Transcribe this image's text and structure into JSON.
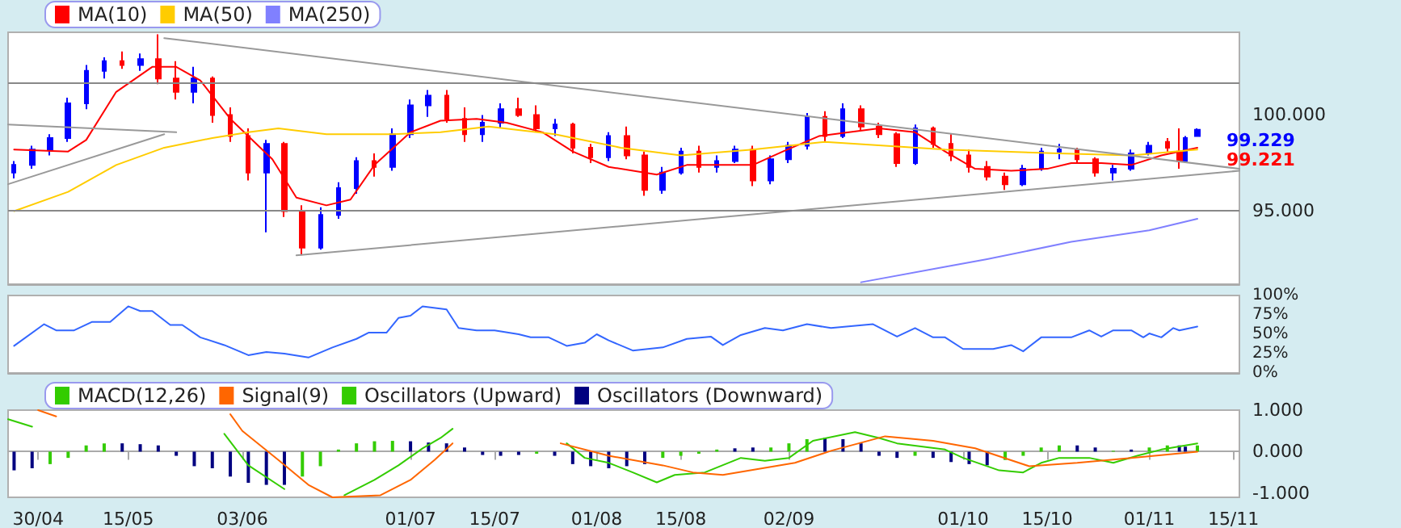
{
  "chart_data": [
    {
      "type": "candlestick",
      "x": [
        "--04-26",
        "--04-29",
        "--05-02",
        "--05-05",
        "--05-08",
        "--05-11",
        "--05-14",
        "--05-17",
        "--05-20",
        "--05-23",
        "--05-26",
        "--05-29",
        "--06-01",
        "--06-04",
        "--06-07",
        "--06-10",
        "--06-13",
        "--06-16",
        "--06-19",
        "--06-22",
        "--06-25",
        "--06-28",
        "--07-01",
        "--07-04",
        "--07-07",
        "--07-10",
        "--07-13",
        "--07-16",
        "--07-19",
        "--07-22",
        "--07-25",
        "--07-28",
        "--07-31",
        "--08-03",
        "--08-06",
        "--08-09",
        "--08-12",
        "--08-15",
        "--08-18",
        "--08-21",
        "--08-24",
        "--08-27",
        "--08-30",
        "--09-02",
        "--09-05",
        "--09-08",
        "--09-11",
        "--09-14",
        "--09-17",
        "--09-20",
        "--09-23",
        "--09-26",
        "--09-29",
        "--10-02",
        "--10-05",
        "--10-08",
        "--10-11",
        "--10-14",
        "--10-17",
        "--10-20",
        "--10-23",
        "--10-26",
        "--10-29",
        "--11-01",
        "--11-04",
        "--11-06",
        "--11-07",
        "--11-09"
      ],
      "ohlc": [
        [
          97.0,
          97.6,
          96.7,
          97.4
        ],
        [
          97.4,
          98.4,
          97.2,
          98.2
        ],
        [
          98.2,
          99.0,
          97.9,
          98.8
        ],
        [
          98.8,
          100.9,
          98.6,
          100.6
        ],
        [
          100.6,
          102.6,
          100.3,
          102.3
        ],
        [
          102.3,
          103.0,
          101.9,
          102.8
        ],
        [
          102.8,
          103.3,
          102.4,
          102.6
        ],
        [
          102.6,
          103.2,
          102.3,
          102.9
        ],
        [
          102.9,
          104.2,
          101.6,
          101.9
        ],
        [
          101.9,
          102.8,
          100.8,
          101.2
        ],
        [
          101.2,
          102.5,
          100.6,
          101.9
        ],
        [
          101.9,
          102.0,
          99.6,
          100.0
        ],
        [
          100.0,
          100.4,
          98.6,
          98.9
        ],
        [
          98.9,
          99.3,
          96.6,
          97.0
        ],
        [
          97.0,
          98.7,
          93.9,
          98.5
        ],
        [
          98.5,
          98.6,
          94.7,
          95.0
        ],
        [
          95.0,
          95.3,
          92.7,
          93.1
        ],
        [
          93.1,
          95.2,
          93.0,
          94.8
        ],
        [
          94.8,
          96.5,
          94.6,
          96.2
        ],
        [
          96.2,
          97.8,
          95.9,
          97.6
        ],
        [
          97.6,
          98.0,
          96.8,
          97.3
        ],
        [
          97.3,
          99.3,
          97.1,
          99.0
        ],
        [
          99.0,
          100.8,
          98.8,
          100.5
        ],
        [
          100.5,
          101.3,
          99.9,
          101.0
        ],
        [
          101.0,
          101.3,
          99.6,
          99.8
        ],
        [
          99.8,
          100.4,
          98.6,
          99.0
        ],
        [
          99.0,
          100.0,
          98.6,
          99.6
        ],
        [
          99.6,
          100.6,
          99.3,
          100.3
        ],
        [
          100.3,
          100.9,
          99.9,
          100.0
        ],
        [
          100.0,
          100.5,
          99.1,
          99.3
        ],
        [
          99.3,
          99.8,
          98.9,
          99.5
        ],
        [
          99.5,
          99.6,
          98.0,
          98.3
        ],
        [
          98.3,
          98.5,
          97.5,
          97.8
        ],
        [
          97.8,
          99.1,
          97.6,
          98.9
        ],
        [
          98.9,
          99.4,
          97.7,
          97.9
        ],
        [
          97.9,
          98.1,
          95.8,
          96.1
        ],
        [
          96.1,
          97.3,
          95.9,
          97.0
        ],
        [
          97.0,
          98.3,
          96.9,
          98.1
        ],
        [
          98.1,
          98.4,
          97.0,
          97.3
        ],
        [
          97.3,
          97.9,
          97.0,
          97.6
        ],
        [
          97.6,
          98.4,
          97.5,
          98.2
        ],
        [
          98.2,
          98.4,
          96.3,
          96.6
        ],
        [
          96.6,
          97.9,
          96.4,
          97.7
        ],
        [
          97.7,
          98.6,
          97.5,
          98.4
        ],
        [
          98.4,
          100.1,
          98.2,
          99.9
        ],
        [
          99.9,
          100.2,
          98.6,
          98.9
        ],
        [
          98.9,
          100.6,
          98.8,
          100.3
        ],
        [
          100.3,
          100.5,
          99.2,
          99.4
        ],
        [
          99.4,
          99.6,
          98.8,
          99.0
        ],
        [
          99.0,
          99.1,
          97.3,
          97.5
        ],
        [
          97.5,
          99.5,
          97.4,
          99.3
        ],
        [
          99.3,
          99.4,
          98.3,
          98.5
        ],
        [
          98.5,
          99.0,
          97.6,
          97.9
        ],
        [
          97.9,
          98.2,
          97.0,
          97.3
        ],
        [
          97.3,
          97.6,
          96.6,
          96.8
        ],
        [
          96.8,
          97.0,
          96.1,
          96.4
        ],
        [
          96.4,
          97.4,
          96.3,
          97.2
        ],
        [
          97.2,
          98.3,
          97.1,
          98.1
        ],
        [
          98.1,
          98.5,
          97.7,
          98.2
        ],
        [
          98.2,
          98.3,
          97.5,
          97.7
        ],
        [
          97.7,
          97.8,
          96.8,
          97.0
        ],
        [
          97.0,
          97.4,
          96.6,
          97.2
        ],
        [
          97.2,
          98.2,
          97.1,
          98.0
        ],
        [
          98.0,
          98.6,
          97.9,
          98.4
        ],
        [
          98.6,
          98.8,
          98.1,
          98.3
        ],
        [
          98.1,
          99.3,
          97.2,
          97.6
        ],
        [
          97.6,
          98.9,
          97.5,
          98.8
        ],
        [
          98.9,
          99.3,
          98.9,
          99.229
        ]
      ],
      "colors": [
        "#0000ff",
        "#0000ff",
        "#0000ff",
        "#0000ff",
        "#0000ff",
        "#0000ff",
        "#ff0000",
        "#0000ff",
        "#ff0000",
        "#ff0000",
        "#0000ff",
        "#ff0000",
        "#ff0000",
        "#ff0000",
        "#0000ff",
        "#ff0000",
        "#ff0000",
        "#0000ff",
        "#0000ff",
        "#0000ff",
        "#ff0000",
        "#0000ff",
        "#0000ff",
        "#0000ff",
        "#ff0000",
        "#ff0000",
        "#0000ff",
        "#0000ff",
        "#ff0000",
        "#ff0000",
        "#0000ff",
        "#ff0000",
        "#ff0000",
        "#0000ff",
        "#ff0000",
        "#ff0000",
        "#0000ff",
        "#0000ff",
        "#ff0000",
        "#0000ff",
        "#0000ff",
        "#ff0000",
        "#0000ff",
        "#0000ff",
        "#0000ff",
        "#ff0000",
        "#0000ff",
        "#ff0000",
        "#ff0000",
        "#ff0000",
        "#0000ff",
        "#ff0000",
        "#ff0000",
        "#ff0000",
        "#ff0000",
        "#ff0000",
        "#0000ff",
        "#0000ff",
        "#0000ff",
        "#ff0000",
        "#ff0000",
        "#0000ff",
        "#0000ff",
        "#0000ff",
        "#ff0000",
        "#ff0000",
        "#0000ff",
        "#0000ff"
      ],
      "series": [
        {
          "name": "MA(10)",
          "type": "line",
          "color": "#ff0000",
          "x": [
            "--04-26",
            "--05-05",
            "--05-08",
            "--05-13",
            "--05-19",
            "--05-23",
            "--05-27",
            "--06-01",
            "--06-08",
            "--06-12",
            "--06-17",
            "--06-21",
            "--06-25",
            "--07-01",
            "--07-06",
            "--07-12",
            "--07-17",
            "--07-23",
            "--07-28",
            "--08-03",
            "--08-11",
            "--08-16",
            "--08-22",
            "--08-27",
            "--09-01",
            "--09-07",
            "--09-12",
            "--09-17",
            "--09-23",
            "--09-28",
            "--10-03",
            "--10-09",
            "--10-15",
            "--10-19",
            "--10-24",
            "--10-29",
            "--11-03",
            "--11-09"
          ],
          "values": [
            98.2,
            98.1,
            98.7,
            101.2,
            102.5,
            102.5,
            101.8,
            99.8,
            97.7,
            95.7,
            95.3,
            95.6,
            97.4,
            99.1,
            99.7,
            99.8,
            99.6,
            99.1,
            98.1,
            97.3,
            96.9,
            97.4,
            97.4,
            97.4,
            98.1,
            98.9,
            99.1,
            99.3,
            99.1,
            98.1,
            97.2,
            97.1,
            97.2,
            97.5,
            97.5,
            97.4,
            97.9,
            98.3
          ]
        },
        {
          "name": "MA(50)",
          "type": "line",
          "color": "#ffcc00",
          "x": [
            "--04-26",
            "--05-05",
            "--05-13",
            "--05-21",
            "--05-29",
            "--06-04",
            "--06-09",
            "--06-17",
            "--06-28",
            "--07-06",
            "--07-14",
            "--07-25",
            "--08-05",
            "--08-15",
            "--08-27",
            "--09-08",
            "--09-28",
            "--10-17",
            "--10-29",
            "--11-09"
          ],
          "values": [
            95.0,
            96.0,
            97.4,
            98.3,
            98.8,
            99.1,
            99.3,
            99.0,
            99.0,
            99.1,
            99.4,
            99.0,
            98.3,
            97.9,
            98.2,
            98.6,
            98.2,
            98.0,
            97.9,
            98.2
          ]
        },
        {
          "name": "MA(250)",
          "type": "line",
          "color": "#8080ff",
          "x": [
            "--09-14",
            "--09-28",
            "--10-05",
            "--10-19",
            "--11-01",
            "--11-09"
          ],
          "values": [
            91.3,
            92.1,
            92.5,
            93.4,
            94.0,
            94.6
          ]
        },
        {
          "type": "line",
          "color": "#999999",
          "x": [
            "--04-25",
            "--05-23"
          ],
          "values": [
            99.5,
            99.1
          ]
        },
        {
          "type": "line",
          "color": "#999999",
          "x": [
            "--04-25",
            "--05-21"
          ],
          "values": [
            96.4,
            99.0
          ]
        },
        {
          "type": "line",
          "color": "#999999",
          "x": [
            "--05-21",
            "--11-16"
          ],
          "values": [
            104.0,
            97.2
          ]
        },
        {
          "type": "line",
          "color": "#999999",
          "x": [
            "--06-12",
            "--11-16"
          ],
          "values": [
            92.7,
            97.1
          ]
        }
      ],
      "ylim": [
        91.2,
        104.3
      ],
      "yticks": [
        {
          "value": 95,
          "label": "95.000"
        },
        {
          "value": 100,
          "label": "100.000"
        }
      ],
      "xlim": [
        "--04-25",
        "--11-16"
      ],
      "ref_lines": [
        {
          "axis": "y",
          "value": 101.7,
          "color": "#888888"
        },
        {
          "axis": "y",
          "value": 95.0,
          "color": "#888888"
        }
      ],
      "annotations": [
        "99.229",
        "99.221"
      ],
      "legend": "top left",
      "tick_labels": "y",
      "marker": "none"
    },
    {
      "type": "line",
      "series": [
        {
          "color": "#3366ff",
          "x": [
            "--04-26",
            "--05-01",
            "--05-03",
            "--05-06",
            "--05-09",
            "--05-12",
            "--05-15",
            "--05-17",
            "--05-19",
            "--05-22",
            "--05-24",
            "--05-27",
            "--05-31",
            "--06-04",
            "--06-07",
            "--06-10",
            "--06-14",
            "--06-18",
            "--06-22",
            "--06-24",
            "--06-27",
            "--06-29",
            "--07-01",
            "--07-03",
            "--07-07",
            "--07-09",
            "--07-12",
            "--07-15",
            "--07-19",
            "--07-21",
            "--07-24",
            "--07-27",
            "--07-30",
            "--08-01",
            "--08-03",
            "--08-07",
            "--08-12",
            "--08-16",
            "--08-20",
            "--08-22",
            "--08-25",
            "--08-29",
            "--09-01",
            "--09-05",
            "--09-09",
            "--09-16",
            "--09-20",
            "--09-23",
            "--09-26",
            "--09-28",
            "--10-01",
            "--10-06",
            "--10-09",
            "--10-11",
            "--10-14",
            "--10-19",
            "--10-22",
            "--10-24",
            "--10-26",
            "--10-29",
            "--10-31",
            "--11-01",
            "--11-03",
            "--11-05",
            "--11-06",
            "--11-09"
          ],
          "values": [
            35,
            63,
            55,
            55,
            66,
            66,
            86,
            80,
            80,
            62,
            62,
            46,
            36,
            23,
            27,
            25,
            20,
            33,
            44,
            52,
            52,
            71,
            74,
            86,
            82,
            58,
            55,
            55,
            50,
            46,
            46,
            35,
            39,
            50,
            42,
            29,
            33,
            44,
            47,
            36,
            49,
            58,
            55,
            63,
            58,
            63,
            47,
            58,
            46,
            46,
            31,
            31,
            36,
            28,
            46,
            46,
            55,
            47,
            55,
            55,
            46,
            51,
            46,
            58,
            55,
            60
          ]
        }
      ],
      "ylim": [
        0,
        100
      ],
      "yticks": [
        {
          "value": 0,
          "label": "0%"
        },
        {
          "value": 25,
          "label": "25%"
        },
        {
          "value": 50,
          "label": "50%"
        },
        {
          "value": 75,
          "label": "75%"
        },
        {
          "value": 100,
          "label": "100%"
        }
      ],
      "xlim": [
        "--04-25",
        "--11-16"
      ],
      "tick_labels": "y",
      "marker": "none"
    },
    {
      "type": "line",
      "series": [
        {
          "name": "MACD(12,26)",
          "color": "#33cc00",
          "x": [
            "--04-25",
            "--04-29",
            "--05-03",
            "--05-31",
            "--06-04",
            "--06-10",
            "--06-13",
            "--06-20",
            "--06-25",
            "--06-29",
            "--07-03",
            "--07-06",
            "--07-08",
            "--07-12",
            "--07-27",
            "--07-30",
            "--08-03",
            "--08-07",
            "--08-11",
            "--08-14",
            "--08-19",
            "--08-25",
            "--08-29",
            "--09-02",
            "--09-06",
            "--09-13",
            "--09-17",
            "--09-20",
            "--09-28",
            "--10-01",
            "--10-07",
            "--10-11",
            "--10-14",
            "--10-17",
            "--10-22",
            "--10-26",
            "--10-30",
            "--11-03",
            "--11-09"
          ],
          "values": [
            0.78,
            0.6,
            null,
            0.43,
            -0.33,
            -0.9,
            null,
            -1.05,
            -0.68,
            -0.33,
            0.08,
            0.33,
            0.55,
            null,
            0.2,
            -0.15,
            -0.27,
            -0.5,
            -0.74,
            -0.56,
            -0.5,
            -0.15,
            -0.22,
            -0.15,
            0.26,
            0.47,
            0.33,
            0.2,
            0.05,
            -0.15,
            -0.45,
            -0.5,
            -0.27,
            -0.15,
            -0.15,
            -0.27,
            -0.1,
            0.05,
            0.2
          ]
        },
        {
          "name": "Signal(9)",
          "color": "#ff6600",
          "x": [
            "--04-30",
            "--05-03",
            "--05-06",
            "--06-01",
            "--06-03",
            "--06-09",
            "--06-14",
            "--06-18",
            "--06-26",
            "--07-01",
            "--07-05",
            "--07-08",
            "--07-12",
            "--07-26",
            "--08-03",
            "--08-12",
            "--08-17",
            "--08-22",
            "--08-29",
            "--09-03",
            "--09-09",
            "--09-18",
            "--09-26",
            "--10-03",
            "--10-12",
            "--10-20",
            "--10-29",
            "--11-09"
          ],
          "values": [
            1.0,
            0.85,
            null,
            0.9,
            0.5,
            -0.2,
            -0.8,
            -1.1,
            -1.05,
            -0.68,
            -0.2,
            0.2,
            null,
            0.2,
            -0.1,
            -0.33,
            -0.5,
            -0.56,
            -0.39,
            -0.27,
            0.02,
            0.37,
            0.26,
            0.08,
            -0.35,
            -0.27,
            -0.15,
            0.0
          ]
        },
        {
          "name": "Oscillators (Upward)",
          "type": "bar",
          "color": "#33cc00",
          "x": [
            "--05-02",
            "--05-05",
            "--05-08",
            "--05-11",
            "--06-13",
            "--06-16",
            "--06-19",
            "--06-22",
            "--06-25",
            "--06-28",
            "--07-22",
            "--08-12",
            "--08-15",
            "--08-18",
            "--08-21",
            "--08-30",
            "--09-02",
            "--09-05",
            "--09-23",
            "--10-08",
            "--10-11",
            "--10-14",
            "--10-17",
            "--10-26",
            "--11-01",
            "--11-04",
            "--11-09"
          ],
          "values": [
            -0.3,
            -0.15,
            0.15,
            0.2,
            -0.6,
            -0.35,
            0.05,
            0.2,
            0.25,
            0.26,
            -0.05,
            -0.15,
            -0.1,
            -0.05,
            0.05,
            0.1,
            0.2,
            0.3,
            -0.1,
            -0.2,
            -0.1,
            0.1,
            0.15,
            0.02,
            0.1,
            0.15,
            0.15
          ]
        },
        {
          "name": "Oscillators (Downward)",
          "type": "bar",
          "color": "#000080",
          "x": [
            "--04-26",
            "--04-29",
            "--05-14",
            "--05-17",
            "--05-20",
            "--05-23",
            "--05-26",
            "--05-29",
            "--06-01",
            "--06-04",
            "--06-07",
            "--06-10",
            "--07-01",
            "--07-04",
            "--07-07",
            "--07-10",
            "--07-13",
            "--07-16",
            "--07-19",
            "--07-25",
            "--07-28",
            "--07-31",
            "--08-03",
            "--08-06",
            "--08-09",
            "--08-24",
            "--08-27",
            "--09-08",
            "--09-11",
            "--09-14",
            "--09-17",
            "--09-20",
            "--09-26",
            "--09-29",
            "--10-02",
            "--10-05",
            "--10-20",
            "--10-23",
            "--10-29",
            "--11-06",
            "--11-07"
          ],
          "values": [
            -0.45,
            -0.4,
            0.2,
            0.18,
            0.15,
            -0.1,
            -0.35,
            -0.4,
            -0.6,
            -0.75,
            -0.8,
            -0.8,
            0.25,
            0.22,
            0.2,
            0.1,
            -0.08,
            -0.1,
            -0.08,
            -0.1,
            -0.3,
            -0.35,
            -0.4,
            -0.35,
            -0.3,
            0.08,
            0.1,
            0.33,
            0.3,
            0.2,
            -0.1,
            -0.15,
            -0.15,
            -0.25,
            -0.3,
            -0.33,
            0.15,
            0.1,
            0.05,
            0.15,
            0.12
          ]
        }
      ],
      "ylim": [
        -1.1,
        1.0
      ],
      "yticks": [
        {
          "value": -1,
          "label": "-1.000"
        },
        {
          "value": 0,
          "label": "0.000"
        },
        {
          "value": 1,
          "label": "1.000"
        }
      ],
      "xlim": [
        "--04-25",
        "--11-16"
      ],
      "xticks": [
        {
          "value": "--04-30",
          "label": "30/04"
        },
        {
          "value": "--05-15",
          "label": "15/05"
        },
        {
          "value": "--06-03",
          "label": "03/06"
        },
        {
          "value": "--07-01",
          "label": "01/07"
        },
        {
          "value": "--07-15",
          "label": "15/07"
        },
        {
          "value": "--08-01",
          "label": "01/08"
        },
        {
          "value": "--08-15",
          "label": "15/08"
        },
        {
          "value": "--09-02",
          "label": "02/09"
        },
        {
          "value": "--10-01",
          "label": "01/10"
        },
        {
          "value": "--10-15",
          "label": "15/10"
        },
        {
          "value": "--11-01",
          "label": "01/11"
        },
        {
          "value": "--11-15",
          "label": "15/11"
        }
      ],
      "legend": "top left",
      "marker": "none"
    }
  ]
}
